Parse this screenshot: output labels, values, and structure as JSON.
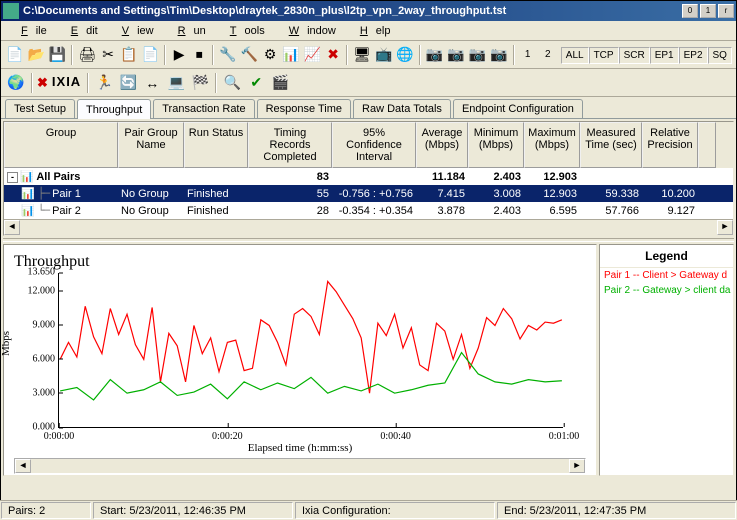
{
  "window": {
    "title": "C:\\Documents and Settings\\Tim\\Desktop\\draytek_2830n_plus\\l2tp_vpn_2way_throughput.tst"
  },
  "menu": [
    "File",
    "Edit",
    "View",
    "Run",
    "Tools",
    "Window",
    "Help"
  ],
  "toolbar2_right": [
    "ALL",
    "TCP",
    "SCR",
    "EP1",
    "EP2",
    "SQ"
  ],
  "logo_text": "IXIA",
  "tabs": [
    "Test Setup",
    "Throughput",
    "Transaction Rate",
    "Response Time",
    "Raw Data Totals",
    "Endpoint Configuration"
  ],
  "active_tab": 1,
  "grid": {
    "columns": [
      "Group",
      "Pair Group Name",
      "Run Status",
      "Timing Records Completed",
      "95% Confidence Interval",
      "Average (Mbps)",
      "Minimum (Mbps)",
      "Maximum (Mbps)",
      "Measured Time (sec)",
      "Relative Precision"
    ],
    "rows": [
      {
        "bold": true,
        "sel": false,
        "cells": [
          "All Pairs",
          "",
          "",
          "83",
          "",
          "11.184",
          "2.403",
          "12.903",
          "",
          ""
        ]
      },
      {
        "bold": false,
        "sel": true,
        "cells": [
          "Pair 1",
          "No Group",
          "Finished",
          "55",
          "-0.756 : +0.756",
          "7.415",
          "3.008",
          "12.903",
          "59.338",
          "10.200"
        ]
      },
      {
        "bold": false,
        "sel": false,
        "cells": [
          "Pair 2",
          "No Group",
          "Finished",
          "28",
          "-0.354 : +0.354",
          "3.878",
          "2.403",
          "6.595",
          "57.766",
          "9.127"
        ]
      }
    ]
  },
  "chart": {
    "title": "Throughput",
    "ylabel": "Mbps",
    "xlabel": "Elapsed time (h:mm:ss)",
    "ylim": [
      0,
      13.65
    ],
    "yticks": [
      0.0,
      3.0,
      6.0,
      9.0,
      12.0,
      13.65
    ],
    "ytick_labels": [
      "0.000",
      "3.000",
      "6.000",
      "9.000",
      "12.000",
      "13.650"
    ],
    "xlim": [
      0,
      60
    ],
    "xticks": [
      0,
      20,
      40,
      60
    ],
    "xtick_labels": [
      "0:00:00",
      "0:00:20",
      "0:00:40",
      "0:01:00"
    ],
    "series": [
      {
        "name": "Pair 1 -- Client > Gateway  d",
        "color": "#ff0000",
        "x": [
          0,
          1,
          2,
          3,
          4,
          5,
          6,
          7,
          8,
          9,
          10,
          11,
          12,
          13,
          14,
          15,
          16,
          17,
          18,
          19,
          20,
          21,
          22,
          23,
          24,
          25,
          26,
          27,
          28,
          29,
          30,
          31,
          32,
          33,
          34,
          35,
          36,
          37,
          38,
          39,
          40,
          41,
          42,
          43,
          44,
          45,
          46,
          47,
          48,
          49,
          50,
          51,
          52,
          53,
          54,
          55,
          56,
          57,
          58,
          59,
          60
        ],
        "y": [
          6.0,
          7.5,
          6.2,
          10.7,
          8.0,
          6.5,
          10.5,
          8.2,
          10.0,
          7.3,
          6.0,
          10.6,
          4.0,
          8.3,
          7.2,
          4.0,
          9.0,
          6.5,
          7.9,
          4.9,
          7.5,
          7.7,
          5.0,
          5.2,
          9.5,
          9.0,
          7.5,
          5.5,
          10.0,
          10.5,
          9.8,
          8.2,
          12.9,
          12.0,
          10.8,
          9.6,
          7.9,
          3.0,
          9.2,
          8.1,
          10.0,
          7.0,
          8.8,
          5.5,
          5.0,
          9.2,
          8.5,
          6.0,
          8.2,
          5.2,
          7.0,
          9.7,
          9.0,
          10.5,
          9.6,
          7.8,
          9.0,
          8.6,
          9.3,
          9.2,
          9.5
        ]
      },
      {
        "name": "Pair 2 -- Gateway > client da",
        "color": "#00b000",
        "x": [
          0,
          2,
          4,
          6,
          8,
          10,
          12,
          14,
          16,
          18,
          20,
          22,
          24,
          26,
          28,
          30,
          32,
          34,
          36,
          38,
          40,
          42,
          44,
          46,
          48,
          50,
          52,
          54,
          56,
          58,
          60
        ],
        "y": [
          3.2,
          3.5,
          2.4,
          4.2,
          3.0,
          3.3,
          4.0,
          2.8,
          3.1,
          3.8,
          2.5,
          4.0,
          3.3,
          3.9,
          3.4,
          4.4,
          3.0,
          3.6,
          3.2,
          3.8,
          3.0,
          3.3,
          3.7,
          3.9,
          6.6,
          4.7,
          4.0,
          3.8,
          4.2,
          4.0,
          4.1
        ]
      }
    ]
  },
  "legend": {
    "title": "Legend",
    "items": [
      {
        "label": "Pair 1 -- Client > Gateway  d",
        "color": "#ff0000"
      },
      {
        "label": "Pair 2 -- Gateway > client da",
        "color": "#00b000"
      }
    ]
  },
  "status": {
    "pairs": "Pairs: 2",
    "start": "Start: 5/23/2011, 12:46:35 PM",
    "ixia": "Ixia Configuration:",
    "end": "End: 5/23/2011, 12:47:35 PM"
  }
}
